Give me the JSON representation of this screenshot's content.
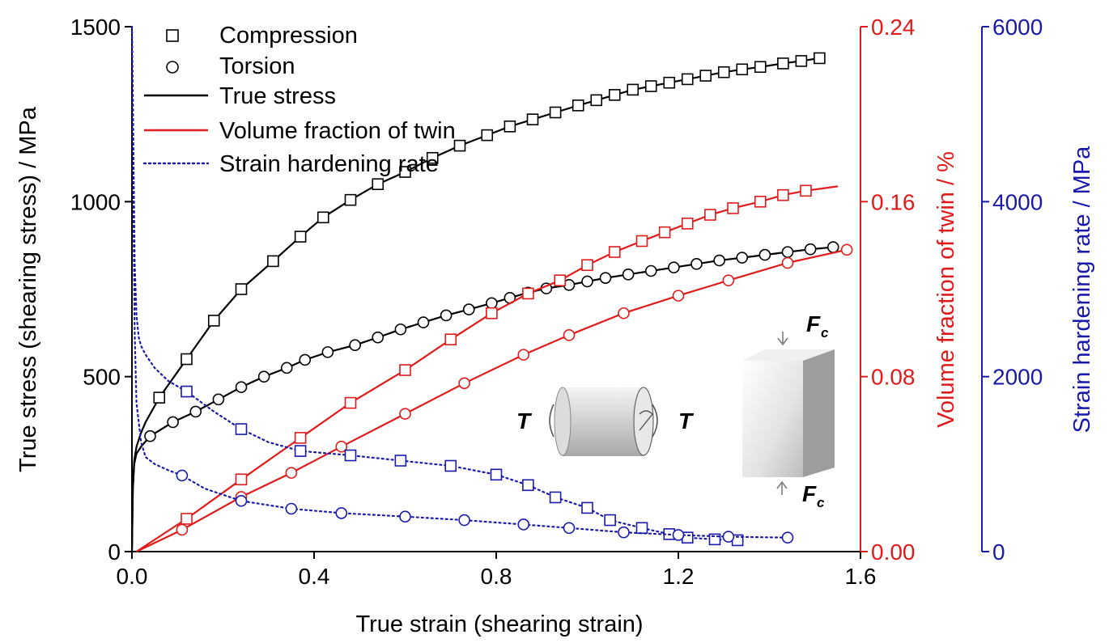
{
  "chart_data": {
    "type": "line",
    "title": "",
    "xlabel": "True strain (shearing strain)",
    "x_axis": {
      "range": [
        0,
        1.6
      ],
      "ticks": [
        0,
        0.4,
        0.8,
        1.2,
        1.6
      ],
      "tick_labels": [
        "0.0",
        "0.4",
        "0.8",
        "1.2",
        "1.6"
      ]
    },
    "y_axes": {
      "left": {
        "label": "True stress (shearing stress) / MPa",
        "range": [
          0,
          1500
        ],
        "ticks": [
          0,
          500,
          1000,
          1500
        ],
        "tick_labels": [
          "0",
          "500",
          "1000",
          "1500"
        ],
        "color": "#000000"
      },
      "right1": {
        "label": "Volume fraction of twin / %",
        "range": [
          0,
          0.24
        ],
        "ticks": [
          0,
          0.08,
          0.16,
          0.24
        ],
        "tick_labels": [
          "0.00",
          "0.08",
          "0.16",
          "0.24"
        ],
        "color": "#e01b1b"
      },
      "right2": {
        "label": "Strain hardening rate / MPa",
        "range": [
          0,
          6000
        ],
        "ticks": [
          0,
          2000,
          4000,
          6000
        ],
        "tick_labels": [
          "0",
          "2000",
          "4000",
          "6000"
        ],
        "color": "#1a1aaa"
      }
    },
    "legend": {
      "position": "top-left",
      "entries": [
        {
          "label": "Compression",
          "kind": "square-marker"
        },
        {
          "label": "Torsion",
          "kind": "circle-marker"
        },
        {
          "label": "True stress",
          "kind": "line",
          "color": "#000000"
        },
        {
          "label": "Volume fraction of twin",
          "kind": "line",
          "color": "#e01b1b"
        },
        {
          "label": "Strain hardening rate",
          "kind": "dotted-line",
          "color": "#1a1aaa"
        }
      ]
    },
    "grid": false,
    "series": [
      {
        "axis": "left",
        "color": "#000000",
        "marker": "square",
        "line": "solid",
        "x": [
          0.0,
          0.002,
          0.005,
          0.01,
          0.02,
          0.03,
          0.06,
          0.12,
          0.18,
          0.24,
          0.31,
          0.37,
          0.42,
          0.48,
          0.54,
          0.6,
          0.66,
          0.72,
          0.78,
          0.83,
          0.88,
          0.93,
          0.98,
          1.02,
          1.06,
          1.1,
          1.14,
          1.18,
          1.22,
          1.26,
          1.3,
          1.34,
          1.38,
          1.43,
          1.47,
          1.51
        ],
        "y": [
          0,
          180,
          260,
          300,
          340,
          370,
          440,
          550,
          660,
          750,
          830,
          900,
          955,
          1005,
          1050,
          1085,
          1125,
          1160,
          1190,
          1215,
          1235,
          1255,
          1275,
          1290,
          1305,
          1320,
          1330,
          1340,
          1350,
          1360,
          1370,
          1378,
          1385,
          1395,
          1402,
          1410
        ],
        "markers_at": [
          0.06,
          0.12,
          0.18,
          0.24,
          0.31,
          0.37,
          0.42,
          0.48,
          0.54,
          0.6,
          0.66,
          0.72,
          0.78,
          0.83,
          0.88,
          0.93,
          0.98,
          1.02,
          1.06,
          1.1,
          1.14,
          1.18,
          1.22,
          1.26,
          1.3,
          1.34,
          1.38,
          1.43,
          1.47,
          1.51
        ]
      },
      {
        "axis": "left",
        "color": "#000000",
        "marker": "circle",
        "line": "solid",
        "x": [
          0.0,
          0.002,
          0.005,
          0.01,
          0.02,
          0.04,
          0.09,
          0.14,
          0.19,
          0.24,
          0.29,
          0.34,
          0.38,
          0.43,
          0.49,
          0.54,
          0.59,
          0.64,
          0.69,
          0.74,
          0.79,
          0.83,
          0.87,
          0.91,
          0.96,
          1.0,
          1.04,
          1.09,
          1.14,
          1.19,
          1.24,
          1.29,
          1.34,
          1.39,
          1.44,
          1.49,
          1.54
        ],
        "y": [
          0,
          180,
          250,
          280,
          300,
          330,
          370,
          400,
          435,
          470,
          500,
          525,
          548,
          570,
          590,
          612,
          635,
          655,
          675,
          692,
          710,
          725,
          740,
          752,
          762,
          772,
          782,
          792,
          802,
          812,
          822,
          832,
          840,
          848,
          856,
          864,
          870
        ],
        "markers_at": [
          0.04,
          0.09,
          0.14,
          0.19,
          0.24,
          0.29,
          0.34,
          0.38,
          0.43,
          0.49,
          0.54,
          0.59,
          0.64,
          0.69,
          0.74,
          0.79,
          0.83,
          0.87,
          0.91,
          0.96,
          1.0,
          1.04,
          1.09,
          1.14,
          1.19,
          1.24,
          1.29,
          1.34,
          1.39,
          1.44,
          1.49,
          1.54
        ]
      },
      {
        "axis": "right1",
        "color": "#e01b1b",
        "marker": "square",
        "line": "solid",
        "x": [
          0.01,
          0.12,
          0.24,
          0.37,
          0.48,
          0.6,
          0.7,
          0.79,
          0.87,
          0.94,
          1.0,
          1.06,
          1.12,
          1.17,
          1.22,
          1.27,
          1.32,
          1.38,
          1.43,
          1.48,
          1.55
        ],
        "y": [
          0.0,
          0.015,
          0.033,
          0.052,
          0.068,
          0.083,
          0.097,
          0.109,
          0.118,
          0.124,
          0.131,
          0.137,
          0.142,
          0.146,
          0.15,
          0.154,
          0.157,
          0.16,
          0.163,
          0.165,
          0.167
        ],
        "markers_at": [
          0.12,
          0.24,
          0.37,
          0.48,
          0.6,
          0.7,
          0.79,
          0.87,
          0.94,
          1.0,
          1.06,
          1.12,
          1.17,
          1.22,
          1.27,
          1.32,
          1.38,
          1.43,
          1.48
        ]
      },
      {
        "axis": "right1",
        "color": "#e01b1b",
        "marker": "circle",
        "line": "solid",
        "x": [
          0.01,
          0.11,
          0.24,
          0.35,
          0.46,
          0.6,
          0.73,
          0.86,
          0.96,
          1.08,
          1.2,
          1.31,
          1.44,
          1.57
        ],
        "y": [
          0.0,
          0.01,
          0.025,
          0.036,
          0.048,
          0.063,
          0.077,
          0.09,
          0.099,
          0.109,
          0.117,
          0.124,
          0.132,
          0.138
        ],
        "markers_at": [
          0.11,
          0.24,
          0.35,
          0.46,
          0.6,
          0.73,
          0.86,
          0.96,
          1.08,
          1.2,
          1.31,
          1.44,
          1.57
        ]
      },
      {
        "axis": "right2",
        "color": "#1a1aaa",
        "marker": "square",
        "line": "dotted",
        "x": [
          0.0,
          0.002,
          0.004,
          0.006,
          0.01,
          0.015,
          0.02,
          0.03,
          0.05,
          0.08,
          0.12,
          0.18,
          0.24,
          0.3,
          0.37,
          0.48,
          0.59,
          0.7,
          0.8,
          0.87,
          0.93,
          1.0,
          1.05,
          1.12,
          1.18,
          1.22,
          1.28,
          1.33
        ],
        "y": [
          6000,
          5200,
          4200,
          3300,
          2700,
          2450,
          2350,
          2250,
          2100,
          1950,
          1830,
          1600,
          1400,
          1250,
          1150,
          1100,
          1040,
          980,
          880,
          760,
          620,
          500,
          360,
          270,
          200,
          160,
          140,
          130
        ],
        "markers_at": [
          0.12,
          0.24,
          0.37,
          0.48,
          0.59,
          0.7,
          0.8,
          0.87,
          0.93,
          1.0,
          1.05,
          1.12,
          1.18,
          1.22,
          1.28,
          1.33
        ]
      },
      {
        "axis": "right2",
        "color": "#1a1aaa",
        "marker": "circle",
        "line": "dotted",
        "x": [
          0.0,
          0.002,
          0.004,
          0.006,
          0.01,
          0.02,
          0.03,
          0.05,
          0.08,
          0.11,
          0.16,
          0.24,
          0.35,
          0.46,
          0.6,
          0.73,
          0.86,
          0.96,
          1.08,
          1.2,
          1.31,
          1.44
        ],
        "y": [
          6000,
          4800,
          3500,
          2500,
          1700,
          1250,
          1080,
          1000,
          930,
          870,
          720,
          580,
          490,
          440,
          400,
          360,
          310,
          270,
          220,
          190,
          170,
          160
        ],
        "markers_at": [
          0.11,
          0.24,
          0.35,
          0.46,
          0.6,
          0.73,
          0.86,
          0.96,
          1.08,
          1.2,
          1.31,
          1.44
        ]
      }
    ],
    "annotations": {
      "torsion_label_left": "T",
      "torsion_label_right": "T",
      "compression_label_top": "F",
      "compression_label_top_sub": "c",
      "compression_label_bottom": "F",
      "compression_label_bottom_sub": "c"
    }
  }
}
